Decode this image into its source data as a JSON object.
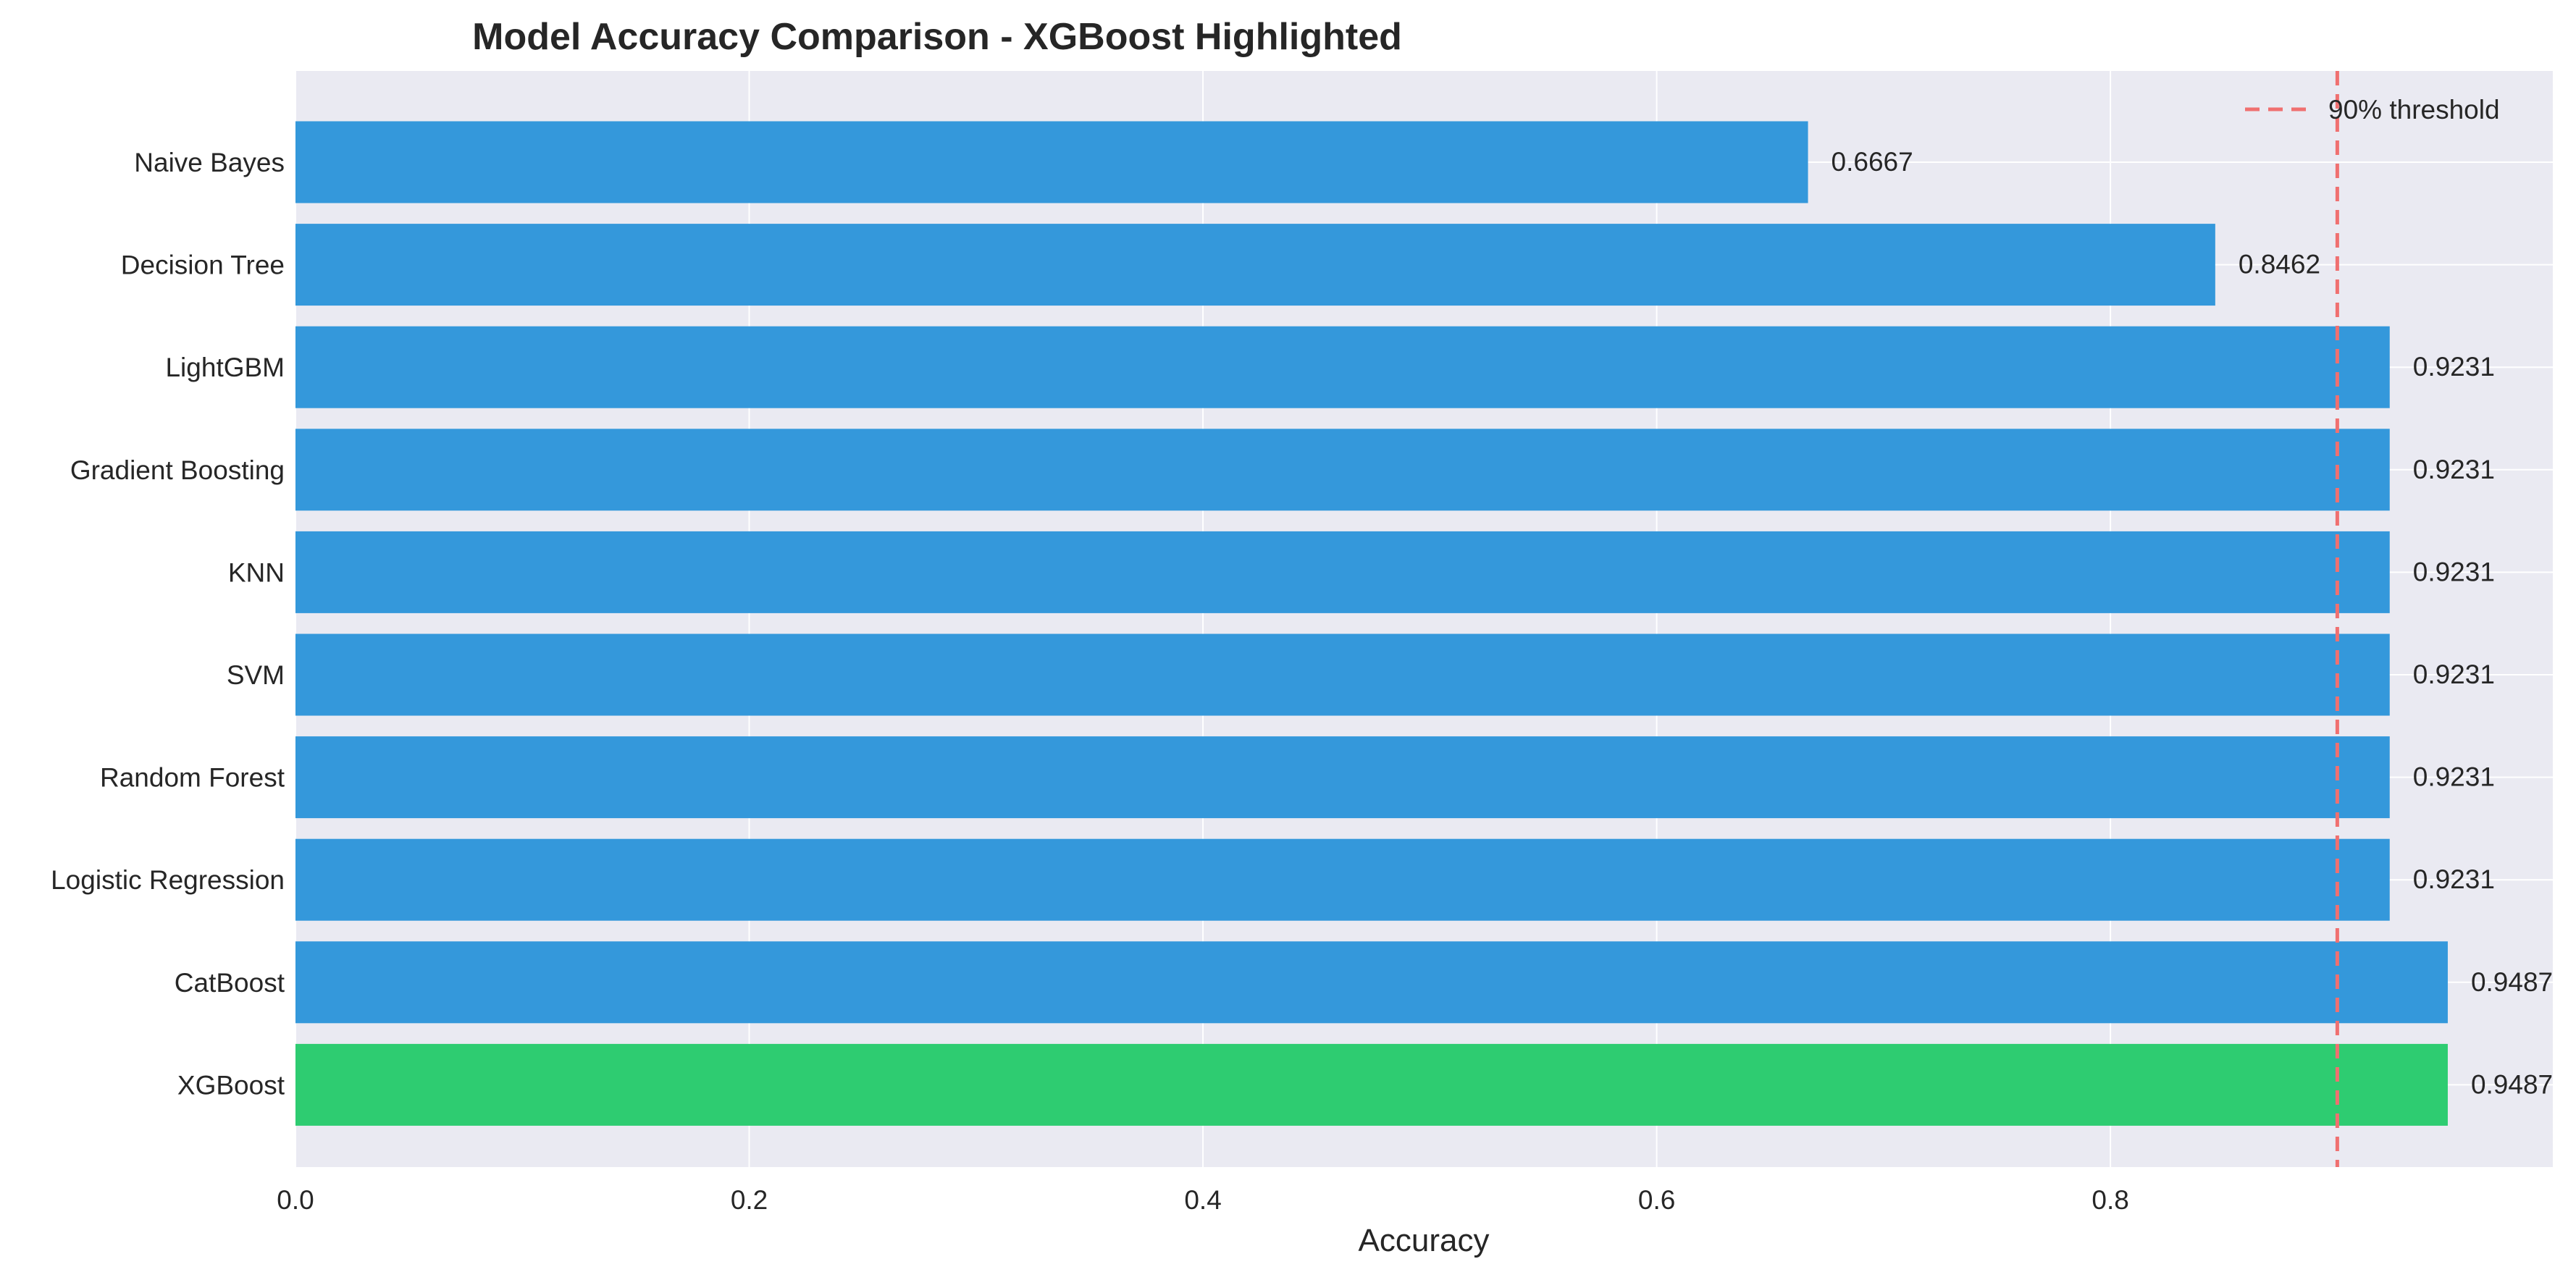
{
  "chart_data": {
    "type": "bar",
    "orientation": "horizontal",
    "title": "Model Accuracy Comparison - XGBoost Highlighted",
    "xlabel": "Accuracy",
    "ylabel": "",
    "xlim": [
      0,
      0.995
    ],
    "xticks": [
      0.0,
      0.2,
      0.4,
      0.6,
      0.8
    ],
    "xtick_labels": [
      "0.0",
      "0.2",
      "0.4",
      "0.6",
      "0.8"
    ],
    "categories": [
      "Naive Bayes",
      "Decision Tree",
      "LightGBM",
      "Gradient Boosting",
      "KNN",
      "SVM",
      "Random Forest",
      "Logistic Regression",
      "CatBoost",
      "XGBoost"
    ],
    "values": [
      0.6667,
      0.8462,
      0.9231,
      0.9231,
      0.9231,
      0.9231,
      0.9231,
      0.9231,
      0.9487,
      0.9487
    ],
    "value_labels": [
      "0.6667",
      "0.8462",
      "0.9231",
      "0.9231",
      "0.9231",
      "0.9231",
      "0.9231",
      "0.9231",
      "0.9487",
      "0.9487"
    ],
    "highlighted": "XGBoost",
    "colors": {
      "bar": "#3498db",
      "highlight": "#2ecc71",
      "threshold": "#f07070",
      "background": "#eaeaf2",
      "grid": "#ffffff"
    },
    "threshold": {
      "value": 0.9,
      "label": "90% threshold"
    },
    "grid": true,
    "legend_position": "top-right"
  }
}
